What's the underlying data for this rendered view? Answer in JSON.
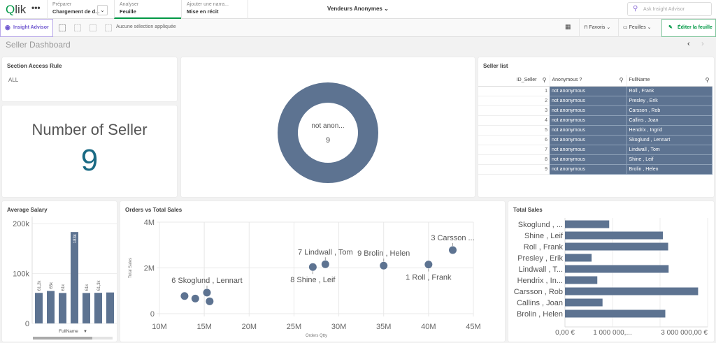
{
  "topbar": {
    "logo": "Qlik",
    "more": "•••",
    "tabs": [
      {
        "sub": "Préparer",
        "main": "Chargement de d..."
      },
      {
        "sub": "Analyser",
        "main": "Feuille"
      },
      {
        "sub": "Ajouter une narra...",
        "main": "Mise en récit"
      }
    ],
    "app_title": "Vendeurs Anonymes",
    "search_placeholder": "Ask Insight Advisor"
  },
  "toolbar": {
    "insight_advisor": "Insight Advisor",
    "no_selection": "Aucune sélection appliquée",
    "favorites": "Favoris",
    "sheets": "Feuilles",
    "edit": "Éditer la feuille"
  },
  "sheet": {
    "title": "Seller Dashboard"
  },
  "colors": {
    "accent": "#009845",
    "bar": "#5d7391",
    "kpi": "#1a6a84"
  },
  "section_access": {
    "title": "Section Access Rule",
    "value": "ALL"
  },
  "kpi": {
    "title": "Number of Seller",
    "value": "9"
  },
  "donut": {
    "label": "not anon...",
    "value": "9"
  },
  "seller_list": {
    "title": "Seller list",
    "columns": [
      "ID_Seller",
      "Anonymous ?",
      "FullName"
    ],
    "rows": [
      [
        "1",
        "not anonymous",
        "Roll , Frank"
      ],
      [
        "2",
        "not anonymous",
        "Presley , Erik"
      ],
      [
        "3",
        "not anonymous",
        "Carsson , Rob"
      ],
      [
        "4",
        "not anonymous",
        "Callins , Joan"
      ],
      [
        "5",
        "not anonymous",
        "Hendrix , Ingrid"
      ],
      [
        "6",
        "not anonymous",
        "Skoglund , Lennart"
      ],
      [
        "7",
        "not anonymous",
        "Lindwall , Tom"
      ],
      [
        "8",
        "not anonymous",
        "Shine , Leif"
      ],
      [
        "9",
        "not anonymous",
        "Brolin , Helen"
      ]
    ]
  },
  "chart_data": [
    {
      "type": "bar",
      "title": "Average Salary",
      "xlabel": "FullName",
      "ylim": [
        0,
        200000
      ],
      "yticks": [
        "0",
        "100k",
        "200k"
      ],
      "values": [
        61200,
        65000,
        61000,
        183000,
        61000,
        61300,
        62000
      ],
      "data_labels": [
        "61,2k",
        "65k",
        "61k",
        "183k",
        "61k",
        "61,3k",
        ""
      ]
    },
    {
      "type": "scatter",
      "title": "Orders vs Total Sales",
      "xlabel": "Orders Qtty",
      "ylabel": "Total Sales",
      "xlim": [
        10000000,
        45000000
      ],
      "ylim": [
        0,
        4000000
      ],
      "xticks": [
        "10M",
        "15M",
        "20M",
        "25M",
        "30M",
        "35M",
        "40M",
        "45M"
      ],
      "yticks": [
        "0",
        "2M",
        "4M"
      ],
      "points": [
        {
          "x": 12800000,
          "y": 770000,
          "label": ""
        },
        {
          "x": 14000000,
          "y": 660000,
          "label": ""
        },
        {
          "x": 15300000,
          "y": 920000,
          "label": "6 Skoglund , Lennart",
          "pos": "above"
        },
        {
          "x": 15600000,
          "y": 540000,
          "label": ""
        },
        {
          "x": 27100000,
          "y": 2040000,
          "label": "8 Shine , Leif",
          "pos": "below"
        },
        {
          "x": 28500000,
          "y": 2160000,
          "label": "7 Lindwall , Tom",
          "pos": "above"
        },
        {
          "x": 35000000,
          "y": 2100000,
          "label": "9 Brolin , Helen",
          "pos": "above"
        },
        {
          "x": 40000000,
          "y": 2150000,
          "label": "1 Roll , Frank",
          "pos": "below"
        },
        {
          "x": 42700000,
          "y": 2780000,
          "label": "3 Carsson ...",
          "pos": "above"
        }
      ]
    },
    {
      "type": "bar",
      "orientation": "horizontal",
      "title": "Total Sales",
      "xlim": [
        0,
        3000000
      ],
      "xticks": [
        {
          "v": 0,
          "t": "0,00 €"
        },
        {
          "v": 1000000,
          "t": "1 000 000,..."
        },
        {
          "v": 3000000,
          "t": "3 000 000,00 €"
        }
      ],
      "categories": [
        "Skoglund , ...",
        "Shine , Leif",
        "Roll , Frank",
        "Presley , Erik",
        "Lindwall , T...",
        "Hendrix , In...",
        "Carsson , Rob",
        "Callins , Joan",
        "Brolin , Helen"
      ],
      "values": [
        930000,
        2060000,
        2170000,
        560000,
        2180000,
        680000,
        2800000,
        790000,
        2110000
      ]
    }
  ]
}
